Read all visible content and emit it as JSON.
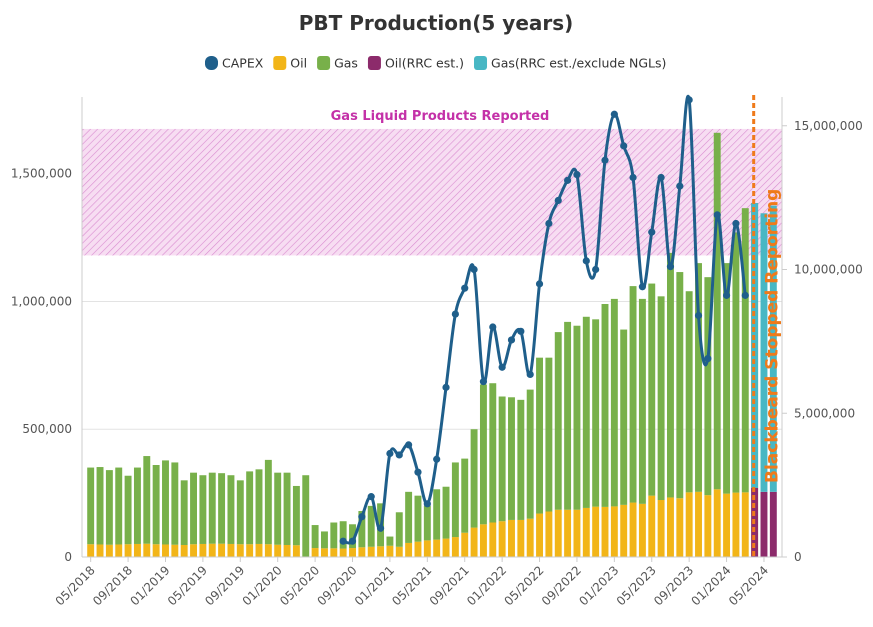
{
  "chart_data": {
    "type": "bar",
    "title": "PBT Production(5 years)",
    "colors": {
      "capex": "#1f5f8b",
      "oil": "#f2b518",
      "gas": "#78b04a",
      "oil_rrc": "#8c2b6b",
      "gas_rrc": "#48b7c4",
      "band": "#d14fb8",
      "stop_line": "#ef7a1a"
    },
    "legend": {
      "position": "top-center",
      "items": [
        {
          "key": "capex",
          "label": "CAPEX",
          "icon": "line-marker"
        },
        {
          "key": "oil",
          "label": "Oil",
          "icon": "square"
        },
        {
          "key": "gas",
          "label": "Gas",
          "icon": "square"
        },
        {
          "key": "oil_rrc",
          "label": "Oil(RRC est.)",
          "icon": "square"
        },
        {
          "key": "gas_rrc",
          "label": "Gas(RRC est./exclude NGLs)",
          "icon": "square"
        }
      ]
    },
    "band": {
      "label": "Gas Liquid Products Reported",
      "y0": 1180000,
      "y1": 1675000
    },
    "stop_marker": {
      "label": "Blackbeard Stopped Reporting",
      "x_index": 71.5
    },
    "y_left": {
      "min": 0,
      "max": 1800000,
      "ticks": [
        0,
        500000,
        1000000,
        1500000
      ],
      "tick_labels": [
        "0",
        "500,000",
        "1,000,000",
        "1,500,000"
      ]
    },
    "y_right": {
      "min": 0,
      "max": 16000000,
      "ticks": [
        0,
        5000000,
        10000000,
        15000000
      ],
      "tick_labels": [
        "0",
        "5,000,000",
        "10,000,000",
        "15,000,000"
      ]
    },
    "x_tick_labels": [
      {
        "index": 0,
        "label": "05/2018"
      },
      {
        "index": 4,
        "label": "09/2018"
      },
      {
        "index": 8,
        "label": "01/2019"
      },
      {
        "index": 12,
        "label": "05/2019"
      },
      {
        "index": 16,
        "label": "09/2019"
      },
      {
        "index": 20,
        "label": "01/2020"
      },
      {
        "index": 24,
        "label": "05/2020"
      },
      {
        "index": 28,
        "label": "09/2020"
      },
      {
        "index": 32,
        "label": "01/2021"
      },
      {
        "index": 36,
        "label": "05/2021"
      },
      {
        "index": 40,
        "label": "09/2021"
      },
      {
        "index": 44,
        "label": "01/2022"
      },
      {
        "index": 48,
        "label": "05/2022"
      },
      {
        "index": 52,
        "label": "09/2022"
      },
      {
        "index": 56,
        "label": "01/2023"
      },
      {
        "index": 60,
        "label": "05/2023"
      },
      {
        "index": 64,
        "label": "09/2023"
      },
      {
        "index": 68,
        "label": "01/2024"
      },
      {
        "index": 72,
        "label": "05/2024"
      }
    ],
    "n_months": 74,
    "oil": [
      50000,
      49000,
      48000,
      49000,
      50000,
      51000,
      52000,
      50000,
      49000,
      48000,
      47000,
      50000,
      51000,
      52000,
      52000,
      51000,
      50000,
      50000,
      51000,
      50000,
      48000,
      47000,
      46000,
      null,
      35000,
      34000,
      34000,
      33000,
      35000,
      38000,
      40000,
      42000,
      44000,
      40000,
      55000,
      60000,
      65000,
      68000,
      72000,
      78000,
      95000,
      115000,
      128000,
      135000,
      140000,
      145000,
      145000,
      150000,
      170000,
      178000,
      185000,
      185000,
      185000,
      192000,
      197000,
      196000,
      198000,
      204000,
      213000,
      208000,
      240000,
      223000,
      233000,
      230000,
      253000,
      255000,
      242000,
      265000,
      248000,
      252000,
      253000,
      240000,
      null,
      null
    ],
    "gas": [
      350000,
      352000,
      340000,
      350000,
      318000,
      350000,
      395000,
      360000,
      378000,
      370000,
      300000,
      330000,
      320000,
      330000,
      328000,
      320000,
      300000,
      335000,
      343000,
      380000,
      330000,
      330000,
      278000,
      320000,
      125000,
      100000,
      135000,
      140000,
      128000,
      180000,
      200000,
      210000,
      80000,
      175000,
      255000,
      240000,
      200000,
      265000,
      275000,
      370000,
      385000,
      500000,
      675000,
      680000,
      628000,
      625000,
      615000,
      655000,
      780000,
      780000,
      880000,
      920000,
      905000,
      940000,
      930000,
      990000,
      1010000,
      890000,
      1060000,
      1010000,
      1070000,
      1020000,
      1190000,
      1115000,
      1040000,
      1150000,
      1095000,
      1660000,
      1150000,
      1270000,
      1365000,
      1385000,
      null,
      null
    ],
    "oil_rrc": [
      null,
      null,
      null,
      null,
      null,
      null,
      null,
      null,
      null,
      null,
      null,
      null,
      null,
      null,
      null,
      null,
      null,
      null,
      null,
      null,
      null,
      null,
      null,
      null,
      null,
      null,
      null,
      null,
      null,
      null,
      null,
      null,
      null,
      null,
      null,
      null,
      null,
      null,
      null,
      null,
      null,
      null,
      null,
      null,
      null,
      null,
      null,
      null,
      null,
      null,
      null,
      null,
      null,
      null,
      null,
      null,
      null,
      null,
      null,
      null,
      null,
      null,
      null,
      null,
      null,
      null,
      null,
      null,
      null,
      null,
      null,
      270000,
      255000,
      255000
    ],
    "gas_rrc": [
      null,
      null,
      null,
      null,
      null,
      null,
      null,
      null,
      null,
      null,
      null,
      null,
      null,
      null,
      null,
      null,
      null,
      null,
      null,
      null,
      null,
      null,
      null,
      null,
      null,
      null,
      null,
      null,
      null,
      null,
      null,
      null,
      null,
      null,
      null,
      null,
      null,
      null,
      null,
      null,
      null,
      null,
      null,
      null,
      null,
      null,
      null,
      null,
      null,
      null,
      null,
      null,
      null,
      null,
      null,
      null,
      null,
      null,
      null,
      null,
      null,
      null,
      null,
      null,
      null,
      null,
      null,
      null,
      null,
      null,
      null,
      1385000,
      1345000,
      1375000
    ],
    "capex": [
      null,
      null,
      null,
      null,
      null,
      null,
      null,
      null,
      null,
      null,
      null,
      null,
      null,
      null,
      null,
      null,
      null,
      null,
      null,
      null,
      null,
      null,
      null,
      null,
      null,
      null,
      null,
      550000,
      550000,
      1400000,
      2100000,
      1000000,
      3600000,
      3550000,
      3900000,
      2950000,
      1850000,
      3400000,
      5900000,
      8450000,
      9350000,
      10000000,
      6100000,
      8000000,
      6600000,
      7550000,
      7850000,
      6350000,
      9500000,
      11600000,
      12400000,
      13100000,
      13300000,
      10300000,
      10000000,
      13800000,
      15400000,
      14300000,
      13200000,
      9400000,
      11300000,
      13200000,
      10100000,
      12900000,
      15900000,
      8400000,
      6900000,
      11900000,
      9100000,
      11600000,
      9100000,
      null,
      null,
      null
    ]
  }
}
